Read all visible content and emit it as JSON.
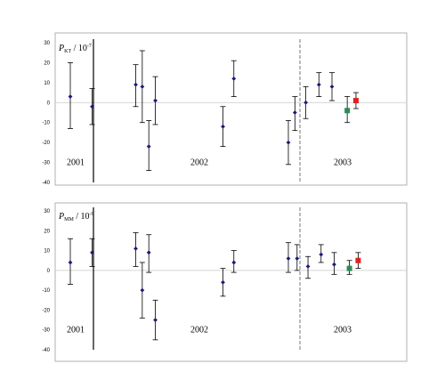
{
  "chart_data": [
    {
      "type": "scatter",
      "ylabel": {
        "symbol": "P",
        "subscript": "KT",
        "unit_prefix": " / 10",
        "exponent": "-7"
      },
      "ylim": [
        -40,
        30
      ],
      "yticks": [
        30,
        20,
        10,
        0,
        -10,
        -20,
        -30,
        -40
      ],
      "groups": [
        "2001",
        "2002",
        "2003"
      ],
      "points": [
        {
          "x": 1,
          "y": 3,
          "err_lo": -13,
          "err_hi": 20,
          "color": "#1a1a7a"
        },
        {
          "x": 2,
          "y": -2,
          "err_lo": -11,
          "err_hi": 7,
          "color": "#1a1a7a"
        },
        {
          "x": 4,
          "y": 9,
          "err_lo": -2,
          "err_hi": 19,
          "color": "#1a1a7a"
        },
        {
          "x": 4.3,
          "y": 8,
          "err_lo": -10,
          "err_hi": 26,
          "color": "#1a1a7a"
        },
        {
          "x": 4.6,
          "y": -22,
          "err_lo": -34,
          "err_hi": -9,
          "color": "#1a1a7a"
        },
        {
          "x": 4.9,
          "y": 1,
          "err_lo": -11,
          "err_hi": 13,
          "color": "#1a1a7a"
        },
        {
          "x": 8,
          "y": -12,
          "err_lo": -22,
          "err_hi": -2,
          "color": "#1a1a7a"
        },
        {
          "x": 8.5,
          "y": 12,
          "err_lo": 3,
          "err_hi": 21,
          "color": "#1a1a7a"
        },
        {
          "x": 11,
          "y": -20,
          "err_lo": -31,
          "err_hi": -9,
          "color": "#1a1a7a"
        },
        {
          "x": 11.3,
          "y": -5,
          "err_lo": -14,
          "err_hi": 3,
          "color": "#1a1a7a"
        },
        {
          "x": 11.8,
          "y": 0,
          "err_lo": -8,
          "err_hi": 8,
          "color": "#1a1a7a"
        },
        {
          "x": 12.4,
          "y": 9,
          "err_lo": 3,
          "err_hi": 15,
          "color": "#1a1a7a"
        },
        {
          "x": 13,
          "y": 8,
          "err_lo": 1,
          "err_hi": 15,
          "color": "#1a1a7a"
        },
        {
          "x": 13.7,
          "y": -4,
          "err_lo": -10,
          "err_hi": 3,
          "color": "#2e8b57"
        },
        {
          "x": 14.1,
          "y": 1,
          "err_lo": -3,
          "err_hi": 5,
          "color": "#e02020"
        }
      ]
    },
    {
      "type": "scatter",
      "ylabel": {
        "symbol": "P",
        "subscript": "MM",
        "unit_prefix": " / 10",
        "exponent": "-9"
      },
      "ylim": [
        -40,
        30
      ],
      "yticks": [
        30,
        20,
        10,
        0,
        -10,
        -20,
        -30,
        -40
      ],
      "groups": [
        "2001",
        "2002",
        "2003"
      ],
      "points": [
        {
          "x": 1,
          "y": 4,
          "err_lo": -7,
          "err_hi": 16,
          "color": "#1a1a7a"
        },
        {
          "x": 2,
          "y": 9,
          "err_lo": 2,
          "err_hi": 16,
          "color": "#1a1a7a"
        },
        {
          "x": 4,
          "y": 11,
          "err_lo": 2,
          "err_hi": 19,
          "color": "#1a1a7a"
        },
        {
          "x": 4.3,
          "y": -10,
          "err_lo": -24,
          "err_hi": 4,
          "color": "#1a1a7a"
        },
        {
          "x": 4.6,
          "y": 9,
          "err_lo": -1,
          "err_hi": 18,
          "color": "#1a1a7a"
        },
        {
          "x": 4.9,
          "y": -25,
          "err_lo": -35,
          "err_hi": -15,
          "color": "#1a1a7a"
        },
        {
          "x": 8,
          "y": -6,
          "err_lo": -13,
          "err_hi": 1,
          "color": "#1a1a7a"
        },
        {
          "x": 8.5,
          "y": 4,
          "err_lo": -1,
          "err_hi": 10,
          "color": "#1a1a7a"
        },
        {
          "x": 11,
          "y": 6,
          "err_lo": -1,
          "err_hi": 14,
          "color": "#1a1a7a"
        },
        {
          "x": 11.4,
          "y": 6,
          "err_lo": 0,
          "err_hi": 13,
          "color": "#1a1a7a"
        },
        {
          "x": 11.9,
          "y": 2,
          "err_lo": -4,
          "err_hi": 7,
          "color": "#1a1a7a"
        },
        {
          "x": 12.5,
          "y": 8,
          "err_lo": 4,
          "err_hi": 13,
          "color": "#1a1a7a"
        },
        {
          "x": 13.1,
          "y": 3,
          "err_lo": -2,
          "err_hi": 9,
          "color": "#1a1a7a"
        },
        {
          "x": 13.8,
          "y": 1,
          "err_lo": -2,
          "err_hi": 5,
          "color": "#2e8b57"
        },
        {
          "x": 14.2,
          "y": 5,
          "err_lo": 1,
          "err_hi": 9,
          "color": "#e02020"
        }
      ]
    }
  ]
}
